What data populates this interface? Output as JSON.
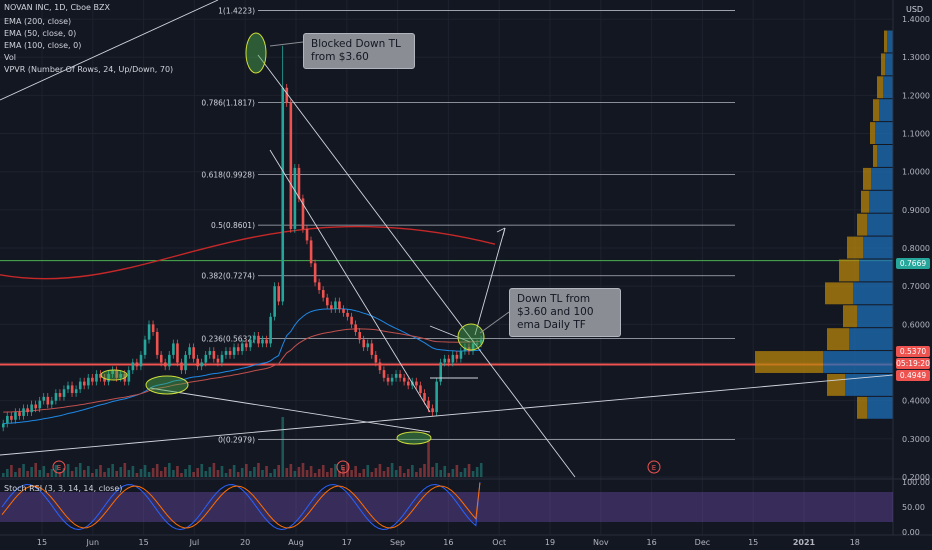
{
  "header": {
    "symbol_line": "NOVAN INC, 1D, Cboe BZX",
    "indicators": [
      "EMA (200, close)",
      "EMA (50, close, 0)",
      "EMA (100, close, 0)",
      "Vol",
      "VPVR (Number Of Rows, 24, Up/Down, 70)"
    ],
    "currency": "USD"
  },
  "rsi_label": "Stoch RSI (3, 3, 14, 14, close)",
  "callouts": {
    "top": "Blocked Down TL from $3.60",
    "right": "Down TL from $3.60 and 100 ema Daily TF"
  },
  "price_tags": [
    {
      "text": "0.7669",
      "color": "#26a69a"
    },
    {
      "text": "0.5370",
      "color": "#ef5350"
    },
    {
      "text": "05:19:20",
      "color": "#ef5350"
    },
    {
      "text": "0.4949",
      "color": "#ef5350"
    }
  ],
  "earnings_markers": [
    "E",
    "E",
    "E"
  ],
  "colors": {
    "background": "#131722",
    "up": "#26a69a",
    "down": "#ef5350",
    "ema200": "#c62828",
    "ema50": "#1e88e5",
    "ema100": "#c0504d",
    "rsi_k": "#2962ff",
    "rsi_d": "#ff6d00",
    "vp_up": "#1e6fb8",
    "vp_down": "#b8860b"
  },
  "chart_data": {
    "type": "candlestick",
    "price_axis": {
      "ticks": [
        "1.4000",
        "1.3000",
        "1.2000",
        "1.1000",
        "1.0000",
        "0.9000",
        "0.8000",
        "0.7000",
        "0.6000",
        "0.5000",
        "0.4000",
        "0.3000",
        "0.2000"
      ],
      "ylim": [
        0.2,
        1.45
      ]
    },
    "time_axis": {
      "ticks": [
        "15",
        "Jun",
        "15",
        "Jul",
        "20",
        "Aug",
        "17",
        "Sep",
        "16",
        "Oct",
        "19",
        "Nov",
        "16",
        "Dec",
        "15",
        "2021",
        "18"
      ]
    },
    "fib_levels": [
      {
        "label": "1(1.4223)",
        "value": 1.4223
      },
      {
        "label": "0.786(1.1817)",
        "value": 1.1817
      },
      {
        "label": "0.618(0.9928)",
        "value": 0.9928
      },
      {
        "label": "0.5(0.8601)",
        "value": 0.8601
      },
      {
        "label": "0.382(0.7274)",
        "value": 0.7274
      },
      {
        "label": "0.236(0.5632)",
        "value": 0.5632
      },
      {
        "label": "0(0.2979)",
        "value": 0.2979
      }
    ],
    "horizontal_lines": [
      {
        "value": 0.7669,
        "color": "#4caf50"
      },
      {
        "value": 0.4949,
        "color": "#ef5350"
      }
    ],
    "closes": [
      0.34,
      0.36,
      0.35,
      0.37,
      0.36,
      0.38,
      0.37,
      0.39,
      0.38,
      0.4,
      0.41,
      0.39,
      0.4,
      0.42,
      0.41,
      0.43,
      0.44,
      0.42,
      0.43,
      0.45,
      0.44,
      0.46,
      0.45,
      0.47,
      0.46,
      0.45,
      0.47,
      0.48,
      0.46,
      0.47,
      0.45,
      0.48,
      0.5,
      0.49,
      0.52,
      0.56,
      0.6,
      0.58,
      0.52,
      0.5,
      0.49,
      0.52,
      0.55,
      0.5,
      0.48,
      0.52,
      0.54,
      0.51,
      0.49,
      0.5,
      0.52,
      0.53,
      0.51,
      0.5,
      0.52,
      0.53,
      0.52,
      0.54,
      0.53,
      0.55,
      0.54,
      0.56,
      0.57,
      0.55,
      0.56,
      0.55,
      0.62,
      0.7,
      0.66,
      1.22,
      1.18,
      0.85,
      1.01,
      0.93,
      0.85,
      0.82,
      0.76,
      0.71,
      0.69,
      0.67,
      0.65,
      0.64,
      0.66,
      0.64,
      0.63,
      0.62,
      0.6,
      0.58,
      0.56,
      0.54,
      0.55,
      0.52,
      0.5,
      0.48,
      0.46,
      0.45,
      0.46,
      0.47,
      0.46,
      0.45,
      0.44,
      0.45,
      0.44,
      0.42,
      0.4,
      0.38,
      0.37,
      0.45,
      0.5,
      0.51,
      0.5,
      0.52,
      0.51,
      0.53,
      0.54,
      0.53,
      0.55,
      0.55,
      0.56
    ],
    "stoch_rsi": {
      "ticks": [
        "100.00",
        "50.00",
        "0.00"
      ],
      "bands": [
        80,
        20
      ]
    }
  }
}
